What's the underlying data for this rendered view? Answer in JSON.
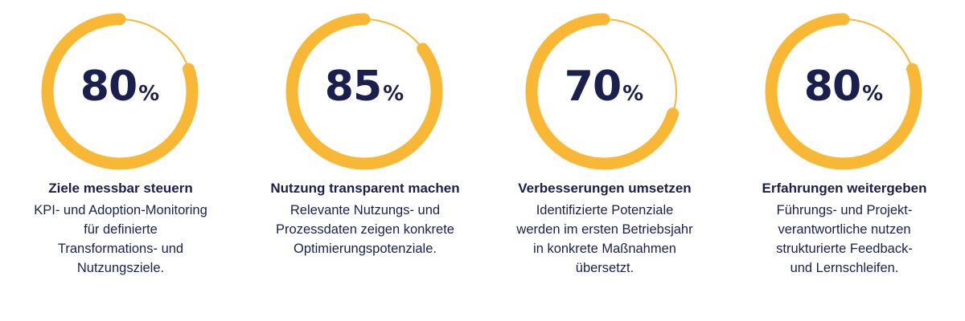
{
  "unit": "%",
  "ring_color": "#f8b735",
  "text_color": "#1a1f4e",
  "kpis": [
    {
      "value": 80,
      "fraction": 0.8,
      "title": "Ziele messbar steuern",
      "desc": [
        "KPI- und Adoption-Monitoring",
        "für definierte",
        "Transformations- und",
        "Nutzungsziele."
      ]
    },
    {
      "value": 85,
      "fraction": 0.85,
      "title": "Nutzung transparent machen",
      "desc": [
        "Relevante Nutzungs- und",
        "Prozessdaten zeigen konkrete",
        "Optimierungspotenziale."
      ]
    },
    {
      "value": 70,
      "fraction": 0.7,
      "title": "Verbesserungen umsetzen",
      "desc": [
        "Identifizierte Potenziale",
        "werden im ersten Betriebsjahr",
        "in konkrete Maßnahmen",
        "übersetzt."
      ]
    },
    {
      "value": 80,
      "fraction": 0.8,
      "title": "Erfahrungen weitergeben",
      "desc": [
        "Führungs- und Projekt-",
        "verantwortliche nutzen",
        "strukturierte Feedback-",
        "und Lernschleifen."
      ]
    }
  ]
}
